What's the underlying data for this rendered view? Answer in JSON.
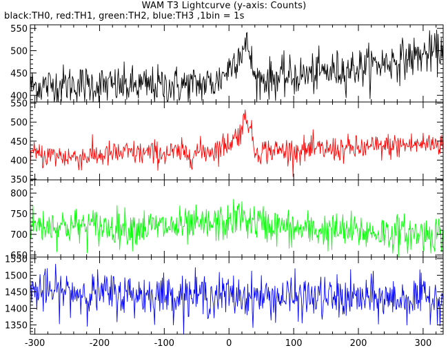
{
  "title": "WAM T3 Lightcurve (y-axis: Counts)",
  "subtitle": "black:TH0, red:TH1, green:TH2, blue:TH3 ,1bin = 1s",
  "chart_data": [
    {
      "type": "line",
      "name": "TH0",
      "color": "#000000",
      "xlim": [
        -307,
        331
      ],
      "ylim": [
        385,
        558
      ],
      "yticks": [
        400,
        450,
        500,
        550
      ],
      "show_xticklabels": false,
      "trend": [
        [
          -307,
          420
        ],
        [
          -240,
          425
        ],
        [
          -160,
          420
        ],
        [
          -60,
          423
        ],
        [
          -20,
          428
        ],
        [
          0,
          460
        ],
        [
          15,
          495
        ],
        [
          30,
          510
        ],
        [
          40,
          435
        ],
        [
          100,
          442
        ],
        [
          200,
          462
        ],
        [
          260,
          478
        ],
        [
          331,
          500
        ]
      ],
      "noise": 22
    },
    {
      "type": "line",
      "name": "TH1",
      "color": "#ff0000",
      "xlim": [
        -307,
        331
      ],
      "ylim": [
        348,
        553
      ],
      "yticks": [
        350,
        400,
        450,
        500,
        550
      ],
      "show_xticklabels": false,
      "trend": [
        [
          -307,
          415
        ],
        [
          -240,
          408
        ],
        [
          -160,
          418
        ],
        [
          -60,
          418
        ],
        [
          -20,
          428
        ],
        [
          0,
          445
        ],
        [
          15,
          468
        ],
        [
          28,
          520
        ],
        [
          40,
          425
        ],
        [
          100,
          425
        ],
        [
          200,
          430
        ],
        [
          260,
          438
        ],
        [
          331,
          445
        ]
      ],
      "noise": 17
    },
    {
      "type": "line",
      "name": "TH2",
      "color": "#00ff00",
      "xlim": [
        -307,
        331
      ],
      "ylim": [
        645,
        832
      ],
      "yticks": [
        650,
        700,
        750,
        800
      ],
      "show_xticklabels": false,
      "trend": [
        [
          -307,
          722
        ],
        [
          -240,
          720
        ],
        [
          -160,
          717
        ],
        [
          -60,
          718
        ],
        [
          0,
          728
        ],
        [
          15,
          745
        ],
        [
          30,
          732
        ],
        [
          100,
          712
        ],
        [
          200,
          706
        ],
        [
          260,
          703
        ],
        [
          331,
          700
        ]
      ],
      "noise": 22
    },
    {
      "type": "line",
      "name": "TH3",
      "color": "#0000ff",
      "xlim": [
        -307,
        331
      ],
      "ylim": [
        1322,
        1555
      ],
      "yticks": [
        1350,
        1400,
        1450,
        1500,
        1550
      ],
      "show_xticklabels": true,
      "xticks": [
        -300,
        -200,
        -100,
        0,
        100,
        200,
        300
      ],
      "trend": [
        [
          -307,
          1452
        ],
        [
          -240,
          1448
        ],
        [
          -160,
          1442
        ],
        [
          -60,
          1440
        ],
        [
          0,
          1438
        ],
        [
          100,
          1432
        ],
        [
          200,
          1430
        ],
        [
          260,
          1428
        ],
        [
          331,
          1432
        ]
      ],
      "noise": 32
    }
  ]
}
